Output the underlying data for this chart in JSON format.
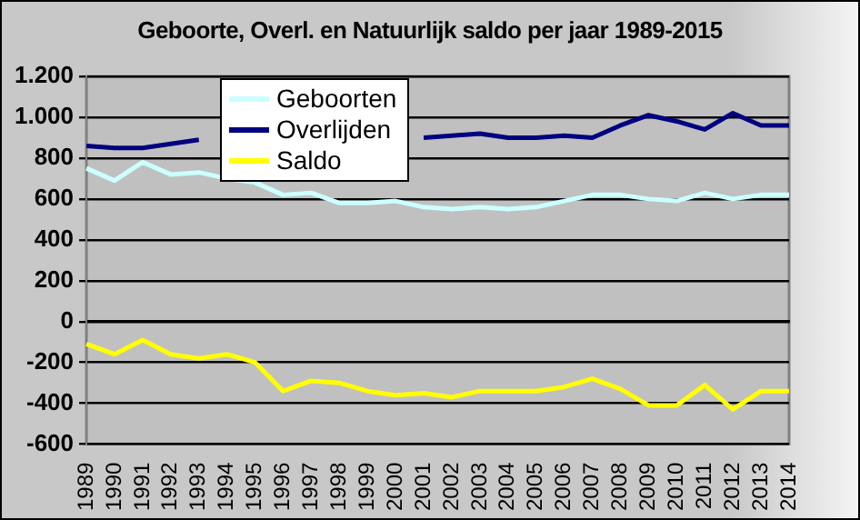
{
  "chart_data": {
    "type": "line",
    "title": "Geboorte, Overl. en Natuurlijk saldo per jaar 1989-2015",
    "categories": [
      "1989",
      "1990",
      "1991",
      "1992",
      "1993",
      "1994",
      "1995",
      "1996",
      "1997",
      "1998",
      "1999",
      "2000",
      "2001",
      "2002",
      "2003",
      "2004",
      "2005",
      "2006",
      "2007",
      "2008",
      "2009",
      "2010",
      "2011",
      "2012",
      "2013",
      "2014"
    ],
    "series": [
      {
        "name": "Geboorten",
        "color": "#ccffff",
        "values": [
          750,
          690,
          780,
          720,
          730,
          700,
          680,
          620,
          630,
          580,
          580,
          590,
          560,
          550,
          560,
          550,
          560,
          590,
          620,
          620,
          600,
          590,
          630,
          600,
          620,
          620
        ]
      },
      {
        "name": "Overlijden",
        "color": "#000080",
        "values": [
          860,
          850,
          850,
          870,
          890,
          null,
          null,
          null,
          null,
          null,
          null,
          null,
          900,
          910,
          920,
          900,
          900,
          910,
          900,
          960,
          1010,
          980,
          940,
          1020,
          960,
          960
        ]
      },
      {
        "name": "Saldo",
        "color": "#ffff00",
        "values": [
          -110,
          -160,
          -90,
          -160,
          -180,
          -160,
          -200,
          -340,
          -290,
          -300,
          -340,
          -360,
          -350,
          -370,
          -340,
          -340,
          -340,
          -320,
          -280,
          -330,
          -410,
          -410,
          -310,
          -430,
          -340,
          -340
        ]
      }
    ],
    "ylim": [
      -600,
      1200
    ],
    "yticks": [
      -600,
      -400,
      -200,
      0,
      200,
      400,
      600,
      800,
      {
        "value": 1000,
        "label": "1.000"
      },
      {
        "value": 1200,
        "label": "1.200"
      }
    ],
    "grid": "y",
    "legend": "top",
    "marker": "none",
    "line_style": "solid"
  }
}
